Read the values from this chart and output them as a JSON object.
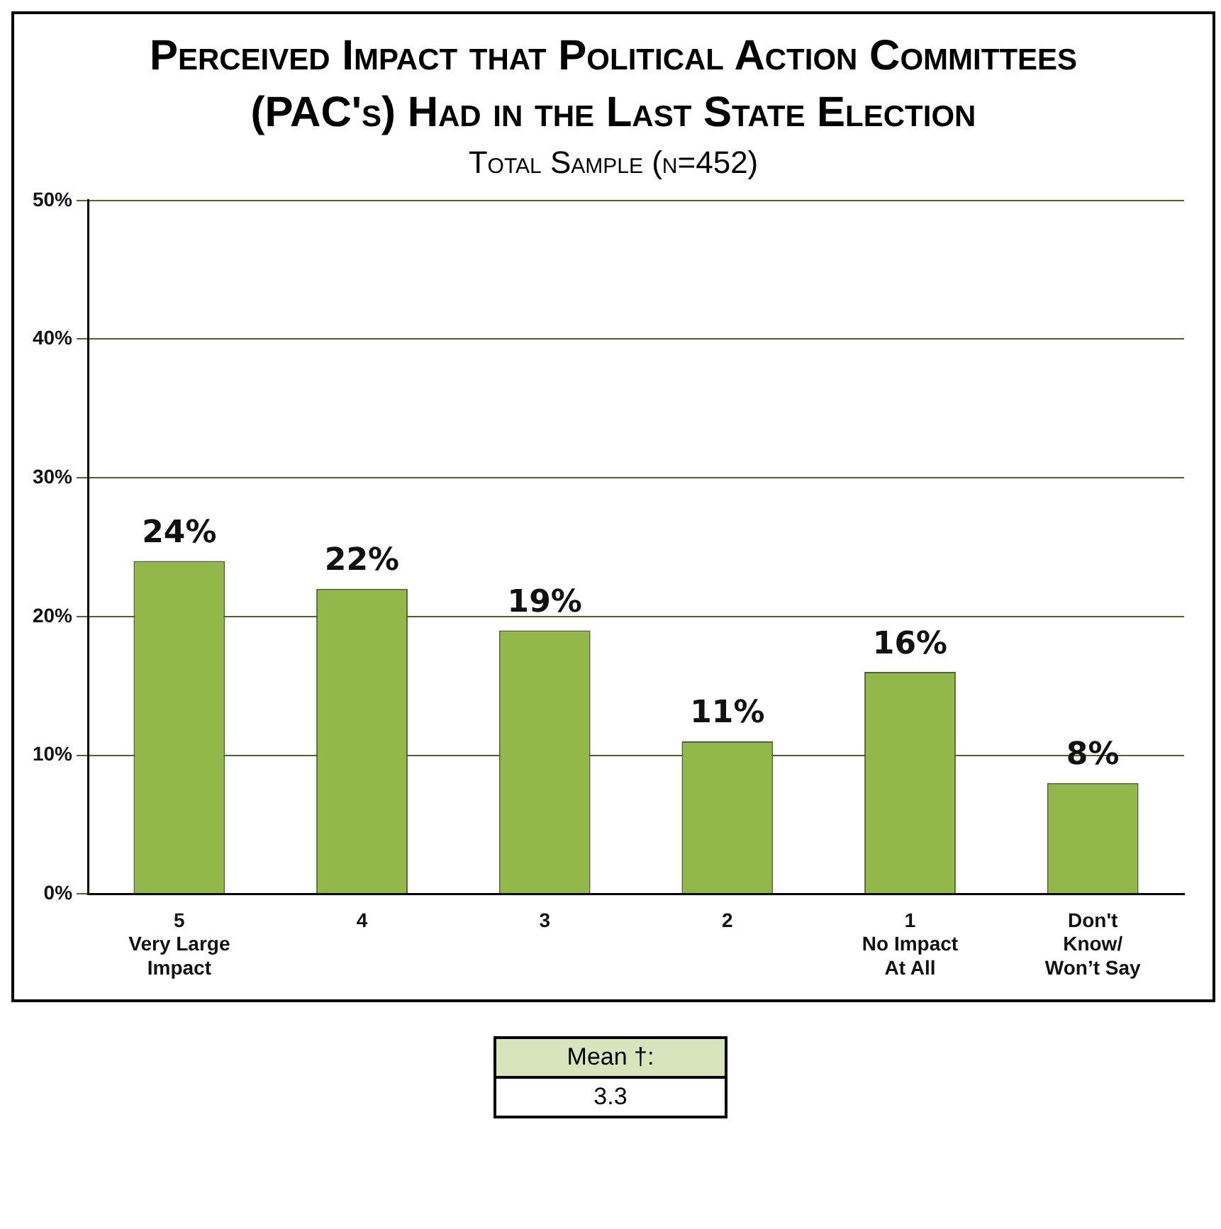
{
  "chart_data": {
    "type": "bar",
    "title": "Perceived Impact that Political Action Committees (PAC's) Had in the Last State Election",
    "subtitle": "Total Sample (n=452)",
    "categories": [
      "5\nVery Large\nImpact",
      "4",
      "3",
      "2",
      "1\nNo Impact\nAt All",
      "Don't\nKnow/\nWon’t Say"
    ],
    "values": [
      24,
      22,
      19,
      11,
      16,
      8
    ],
    "color": "#92b84a",
    "ylim": [
      0,
      50
    ],
    "yticks": [
      {
        "value": 0,
        "label": "0%"
      },
      {
        "value": 10,
        "label": "10%"
      },
      {
        "value": 20,
        "label": "20%"
      },
      {
        "value": 30,
        "label": "30%"
      },
      {
        "value": 40,
        "label": "40%"
      },
      {
        "value": 50,
        "label": "50%"
      }
    ],
    "value_labels": [
      "24%",
      "22%",
      "19%",
      "11%",
      "16%",
      "8%"
    ],
    "grid": "y",
    "legend": false,
    "annotations": [
      "Mean †:",
      "3.3"
    ]
  }
}
